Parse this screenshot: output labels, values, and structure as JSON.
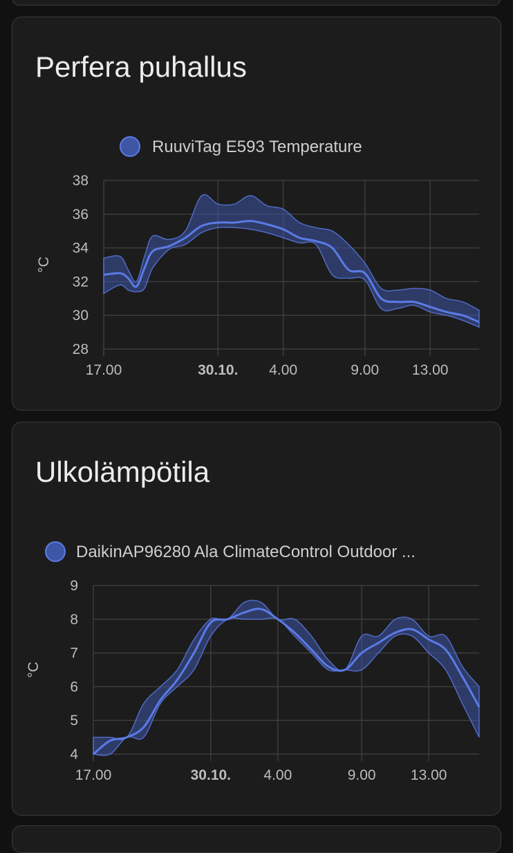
{
  "colors": {
    "series": "#5b7be6",
    "band_fill": "#3e56a6",
    "grid": "#3c3c3c",
    "card": "#1c1c1c",
    "background": "#111111"
  },
  "cards": [
    {
      "title": "Perfera puhallus",
      "chart_data": {
        "type": "line",
        "title": "Perfera puhallus",
        "ylabel": "°C",
        "ylim": [
          28,
          38
        ],
        "yticks": [
          28,
          30,
          32,
          34,
          36,
          38
        ],
        "xlim": [
          0,
          23
        ],
        "xticks": [
          {
            "label": "17.00",
            "x": 0,
            "bold": false
          },
          {
            "label": "30.10.",
            "x": 7,
            "bold": true
          },
          {
            "label": "4.00",
            "x": 11,
            "bold": false
          },
          {
            "label": "9.00",
            "x": 16,
            "bold": false
          },
          {
            "label": "13.00",
            "x": 20,
            "bold": false
          }
        ],
        "legend_position": "top-center",
        "series": [
          {
            "name": "RuuviTag E593 Temperature",
            "x": [
              0,
              1,
              1.5,
              2,
              2.5,
              3,
              4,
              5,
              6,
              7,
              8,
              9,
              10,
              11,
              12,
              13,
              14,
              15,
              16,
              17,
              18,
              19,
              20,
              21,
              22,
              23
            ],
            "mean": [
              32.4,
              32.5,
              32.2,
              31.7,
              32.8,
              33.8,
              34.1,
              34.6,
              35.3,
              35.5,
              35.5,
              35.6,
              35.4,
              35.1,
              34.6,
              34.4,
              34.0,
              32.7,
              32.5,
              31.0,
              30.8,
              30.8,
              30.5,
              30.2,
              30.0,
              29.6
            ],
            "max": [
              33.4,
              33.5,
              32.7,
              32.0,
              33.5,
              34.7,
              34.5,
              35.0,
              37.1,
              36.6,
              36.6,
              37.1,
              36.5,
              36.3,
              35.5,
              35.2,
              35.0,
              34.2,
              33.1,
              31.6,
              31.5,
              31.6,
              31.5,
              31.0,
              30.8,
              30.3
            ],
            "min": [
              31.3,
              31.8,
              31.5,
              31.4,
              31.6,
              32.8,
              33.9,
              34.2,
              34.9,
              35.2,
              35.2,
              35.1,
              34.9,
              34.6,
              34.3,
              34.2,
              32.4,
              32.2,
              32.1,
              30.4,
              30.4,
              30.6,
              30.2,
              30.0,
              29.7,
              29.3
            ]
          }
        ]
      }
    },
    {
      "title": "Ulkolämpötila",
      "chart_data": {
        "type": "line",
        "title": "Ulkolämpötila",
        "ylabel": "°C",
        "ylim": [
          4,
          9
        ],
        "yticks": [
          4,
          5,
          6,
          7,
          8,
          9
        ],
        "xlim": [
          0,
          23
        ],
        "xticks": [
          {
            "label": "17.00",
            "x": 0,
            "bold": false
          },
          {
            "label": "30.10.",
            "x": 7,
            "bold": true
          },
          {
            "label": "4.00",
            "x": 11,
            "bold": false
          },
          {
            "label": "9.00",
            "x": 16,
            "bold": false
          },
          {
            "label": "13.00",
            "x": 20,
            "bold": false
          }
        ],
        "legend_position": "top-center",
        "series": [
          {
            "name": "DaikinAP96280 Ala ClimateControl Outdoor ...",
            "x": [
              0,
              1,
              2,
              3,
              4,
              5,
              6,
              7,
              8,
              9,
              10,
              11,
              12,
              13,
              14,
              15,
              16,
              17,
              18,
              19,
              20,
              21,
              22,
              23
            ],
            "mean": [
              4.0,
              4.4,
              4.5,
              4.8,
              5.6,
              6.2,
              7.0,
              7.9,
              8.0,
              8.2,
              8.3,
              8.0,
              7.6,
              7.1,
              6.6,
              6.5,
              7.0,
              7.3,
              7.6,
              7.7,
              7.4,
              7.1,
              6.3,
              5.4
            ],
            "max": [
              4.5,
              4.5,
              4.5,
              5.5,
              6.0,
              6.5,
              7.4,
              8.0,
              8.0,
              8.5,
              8.5,
              8.0,
              8.0,
              7.5,
              6.8,
              6.5,
              7.5,
              7.5,
              8.0,
              8.0,
              7.5,
              7.5,
              6.6,
              6.0
            ],
            "min": [
              4.0,
              4.0,
              4.5,
              4.5,
              5.5,
              6.0,
              6.5,
              7.5,
              8.0,
              8.0,
              8.0,
              8.0,
              7.5,
              7.0,
              6.5,
              6.5,
              6.5,
              7.0,
              7.5,
              7.5,
              7.0,
              6.5,
              5.5,
              4.5
            ]
          }
        ]
      }
    }
  ]
}
